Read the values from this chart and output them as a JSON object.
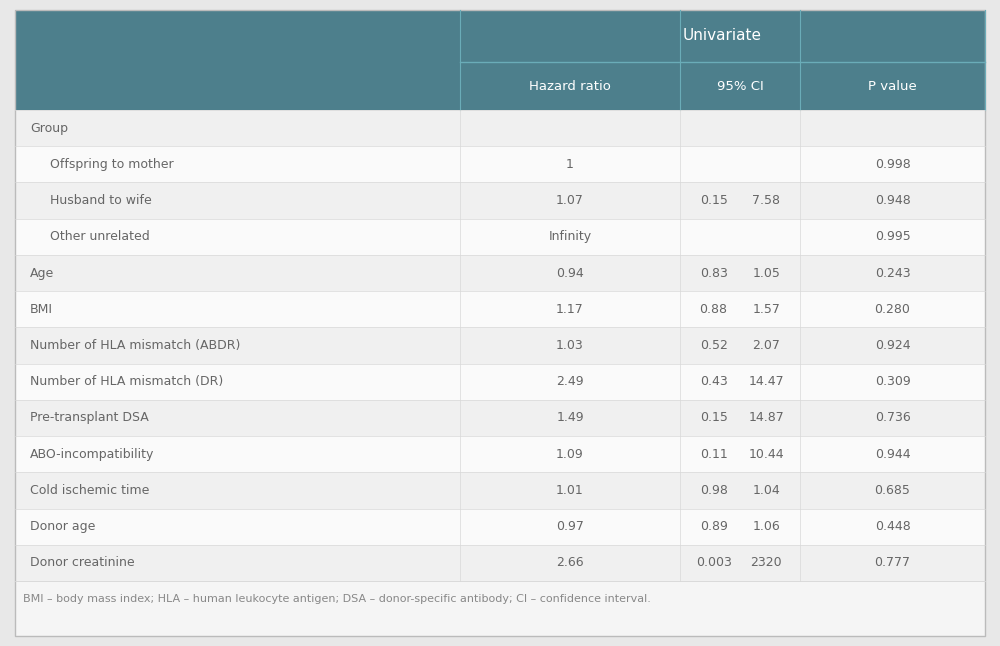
{
  "title": "Univariate",
  "col_headers": [
    "Hazard ratio",
    "95% CI",
    "P value"
  ],
  "header_bg": "#4d7f8c",
  "header_text_color": "#ffffff",
  "body_text_color": "#666666",
  "row_bg_odd": "#f2f2f2",
  "row_bg_even": "#fafafa",
  "sep_color": "#d8d8d8",
  "header_sep_color": "#6aacb8",
  "footnote_text": "BMI – body mass index; HLA – human leukocyte antigen; DSA – donor-specific antibody; CI – confidence interval.",
  "rows": [
    {
      "label": "Group",
      "indent": 0,
      "hr": "",
      "ci_low": "",
      "ci_high": "",
      "pval": ""
    },
    {
      "label": "Offspring to mother",
      "indent": 1,
      "hr": "1",
      "ci_low": "",
      "ci_high": "",
      "pval": "0.998"
    },
    {
      "label": "Husband to wife",
      "indent": 1,
      "hr": "1.07",
      "ci_low": "0.15",
      "ci_high": "7.58",
      "pval": "0.948"
    },
    {
      "label": "Other unrelated",
      "indent": 1,
      "hr": "Infinity",
      "ci_low": "",
      "ci_high": "",
      "pval": "0.995"
    },
    {
      "label": "Age",
      "indent": 0,
      "hr": "0.94",
      "ci_low": "0.83",
      "ci_high": "1.05",
      "pval": "0.243"
    },
    {
      "label": "BMI",
      "indent": 0,
      "hr": "1.17",
      "ci_low": "0.88",
      "ci_high": "1.57",
      "pval": "0.280"
    },
    {
      "label": "Number of HLA mismatch (ABDR)",
      "indent": 0,
      "hr": "1.03",
      "ci_low": "0.52",
      "ci_high": "2.07",
      "pval": "0.924"
    },
    {
      "label": "Number of HLA mismatch (DR)",
      "indent": 0,
      "hr": "2.49",
      "ci_low": "0.43",
      "ci_high": "14.47",
      "pval": "0.309"
    },
    {
      "label": "Pre-transplant DSA",
      "indent": 0,
      "hr": "1.49",
      "ci_low": "0.15",
      "ci_high": "14.87",
      "pval": "0.736"
    },
    {
      "label": "ABO-incompatibility",
      "indent": 0,
      "hr": "1.09",
      "ci_low": "0.11",
      "ci_high": "10.44",
      "pval": "0.944"
    },
    {
      "label": "Cold ischemic time",
      "indent": 0,
      "hr": "1.01",
      "ci_low": "0.98",
      "ci_high": "1.04",
      "pval": "0.685"
    },
    {
      "label": "Donor age",
      "indent": 0,
      "hr": "0.97",
      "ci_low": "0.89",
      "ci_high": "1.06",
      "pval": "0.448"
    },
    {
      "label": "Donor creatinine",
      "indent": 0,
      "hr": "2.66",
      "ci_low": "0.003",
      "ci_high": "2320",
      "pval": "0.777"
    }
  ],
  "figsize": [
    10.0,
    6.46
  ],
  "dpi": 100,
  "fig_bg": "#e8e8e8",
  "table_bg": "#f5f5f5"
}
